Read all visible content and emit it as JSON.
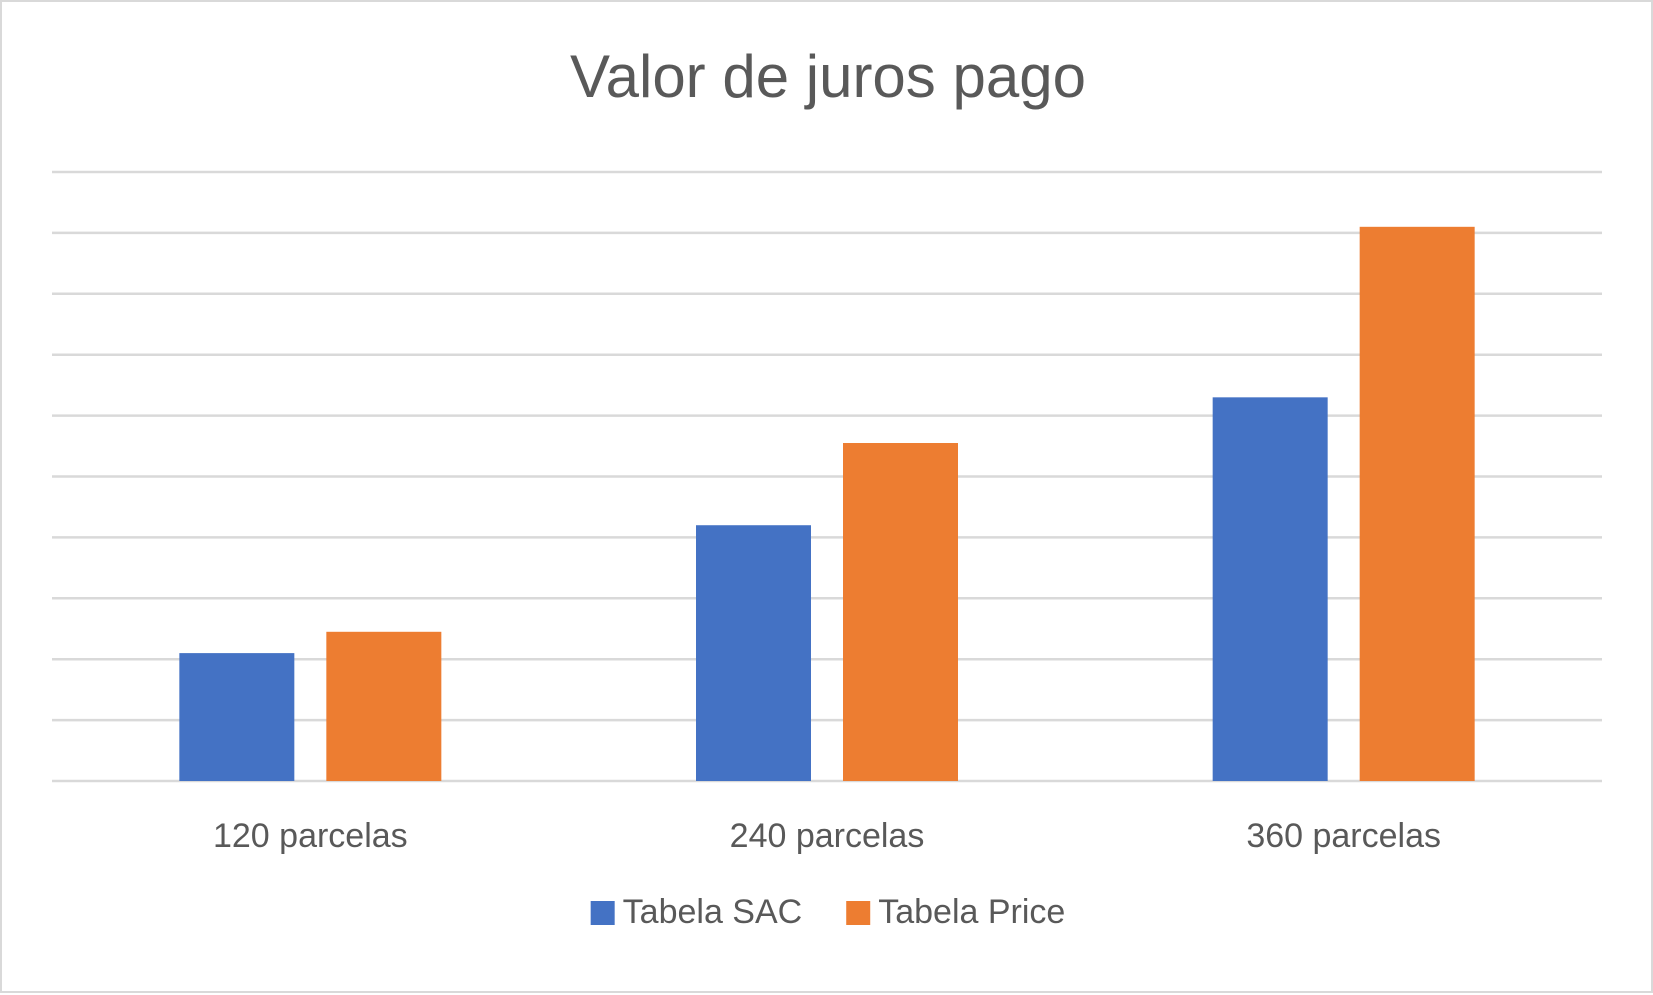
{
  "chart_data": {
    "type": "bar",
    "title": "Valor de juros pago",
    "xlabel": "",
    "ylabel": "",
    "categories": [
      "120 parcelas",
      "240 parcelas",
      "360 parcelas"
    ],
    "series": [
      {
        "name": "Tabela SAC",
        "color": "#4472c4",
        "values": [
          2.1,
          4.2,
          6.3
        ]
      },
      {
        "name": "Tabela Price",
        "color": "#ed7d31",
        "values": [
          2.45,
          5.55,
          9.1
        ]
      }
    ],
    "ylim": [
      0,
      10
    ],
    "y_gridlines": 10,
    "y_tick_labels_shown": false,
    "grid": true,
    "legend_position": "bottom"
  }
}
